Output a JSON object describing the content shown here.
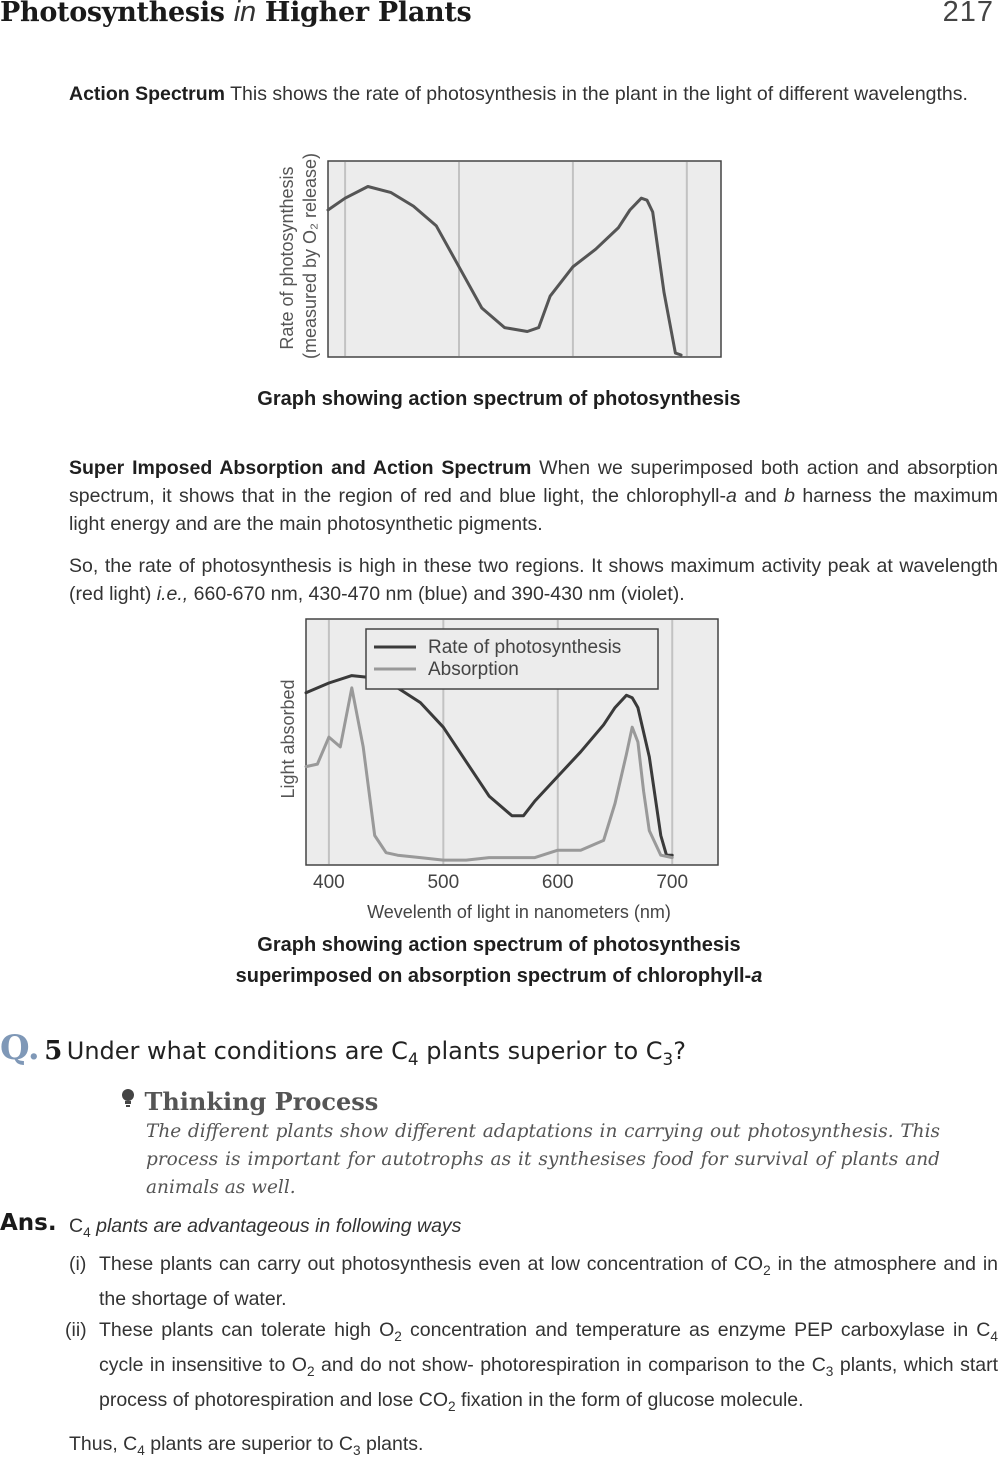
{
  "header": {
    "title_part1": "Photosynthesis",
    "title_in": "in",
    "title_part2": "Higher Plants",
    "page_number": "217"
  },
  "action_spectrum": {
    "lead": "Action Spectrum",
    "text": "This shows the rate of photosynthesis in the plant in the light of different wavelengths.",
    "ylabel_line1": "Rate of photosynthesis",
    "ylabel_line2": "(measured by O₂ release)",
    "caption": "Graph showing action spectrum of photosynthesis"
  },
  "superimposed": {
    "lead": "Super Imposed Absorption and Action Spectrum",
    "text1_a": "When we superimposed both action and absorption spectrum, it shows that in the region of red and blue light, the chlorophyll-",
    "text1_a_italic": "a",
    "text1_b": "and",
    "text1_b_italic": "b",
    "text1_c": "harness the maximum light energy and are the main photosynthetic pigments.",
    "text2_a": "So, the rate of photosynthesis is high in these two regions. It shows maximum activity peak at wavelength (red light)",
    "text2_ie": "i.e.,",
    "text2_b": "660-670 nm, 430-470 nm (blue) and 390-430 nm (violet).",
    "ylabel": "Light absorbed",
    "xlabel": "Wevelenth of light in nanometers (nm)",
    "caption_line1": "Graph showing action spectrum of photosynthesis",
    "caption_line2_a": "superimposed on absorption spectrum of chlorophyll-",
    "caption_line2_b": "a"
  },
  "question": {
    "mark": "Q.",
    "number": "5",
    "text_a": "Under what conditions are C",
    "sub_a": "4",
    "text_b": "plants superior to C",
    "sub_b": "3",
    "text_c": "?"
  },
  "thinking": {
    "heading": "Thinking Process",
    "body": "The different plants show different adaptations in carrying out photosynthesis. This process is important for autotrophs as it synthesises food for survival of plants and animals as well."
  },
  "answer": {
    "label": "Ans.",
    "intro_c": "C",
    "intro_sub": "4",
    "intro_text": "plants  are advantageous in following ways",
    "points": [
      {
        "marker": "(i)",
        "a": "These plants can carry out photosynthesis even at low concentration of CO",
        "sub1": "2",
        "b": "in the atmosphere and in the shortage of water."
      },
      {
        "marker": "(ii)",
        "a": "These plants can tolerate high O",
        "sub1": "2",
        "b": "concentration and temperature  as enzyme PEP carboxylase in C",
        "sub2": "4",
        "c": "cycle in insensitive to O",
        "sub3": "2",
        "d": "and do not show- photorespiration in comparison to the C",
        "sub4": "3",
        "e": "plants, which start process of photorespiration and lose CO",
        "sub5": "2",
        "f": "fixation in the form of glucose molecule."
      }
    ],
    "conclusion_a": "Thus, C",
    "conclusion_sub1": "4",
    "conclusion_b": "plants are superior to C",
    "conclusion_sub2": "3",
    "conclusion_c": "plants."
  },
  "chart_data": [
    {
      "type": "line",
      "title": "",
      "xlabel": "",
      "ylabel": "Rate of photosynthesis (measured by O₂ release)",
      "xlim": [
        385,
        730
      ],
      "ylim": [
        0,
        100
      ],
      "grid": true,
      "series": [
        {
          "name": "",
          "color": "#555555",
          "x": [
            385,
            400,
            420,
            440,
            460,
            480,
            500,
            520,
            540,
            560,
            570,
            580,
            600,
            620,
            640,
            650,
            660,
            665,
            670,
            680,
            690,
            695
          ],
          "y": [
            75,
            81,
            87,
            84,
            77,
            67,
            46,
            25,
            15,
            13,
            15,
            31,
            46,
            55,
            66,
            75,
            81,
            80,
            74,
            33,
            2,
            1
          ]
        }
      ]
    },
    {
      "type": "line",
      "title": "",
      "xlabel": "Wevelenth of light in nanometers (nm)",
      "ylabel": "Light absorbed",
      "xlim": [
        380,
        740
      ],
      "ylim": [
        0,
        100
      ],
      "x_ticks": [
        400,
        500,
        600,
        700
      ],
      "grid": true,
      "legend": "top-right",
      "series": [
        {
          "name": "Rate of photosynthesis",
          "color": "#3a3a3a",
          "x": [
            380,
            400,
            420,
            440,
            460,
            480,
            500,
            520,
            540,
            560,
            570,
            580,
            600,
            620,
            640,
            650,
            660,
            665,
            670,
            680,
            690,
            695,
            700
          ],
          "y": [
            70,
            74,
            77,
            76,
            72,
            66,
            56,
            42,
            28,
            20,
            20,
            26,
            36,
            46,
            57,
            64,
            69,
            68,
            64,
            44,
            12,
            4,
            4
          ]
        },
        {
          "name": "Absorption",
          "color": "#999999",
          "x": [
            380,
            390,
            400,
            410,
            420,
            430,
            440,
            450,
            460,
            480,
            500,
            520,
            540,
            560,
            580,
            600,
            620,
            640,
            650,
            660,
            665,
            670,
            675,
            680,
            690,
            700
          ],
          "y": [
            40,
            41,
            52,
            48,
            72,
            48,
            12,
            5,
            4,
            3,
            2,
            2,
            3,
            3,
            3,
            6,
            6,
            10,
            25,
            45,
            56,
            50,
            30,
            14,
            4,
            3
          ]
        }
      ]
    }
  ]
}
